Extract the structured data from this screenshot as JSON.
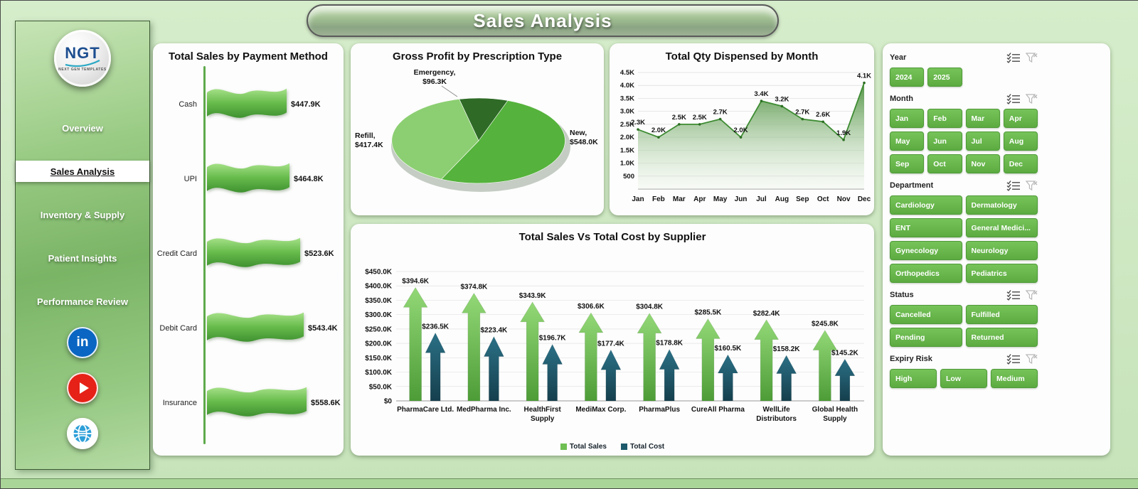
{
  "title": "Sales Analysis",
  "logo": {
    "text": "NGT",
    "subtext": "NEXT GEN TEMPLATES"
  },
  "sidebar": {
    "items": [
      {
        "label": "Overview",
        "active": false
      },
      {
        "label": "Sales Analysis",
        "active": true
      },
      {
        "label": "Inventory & Supply",
        "active": false
      },
      {
        "label": "Patient Insights",
        "active": false
      },
      {
        "label": "Performance Review",
        "active": false
      }
    ],
    "social": [
      {
        "name": "linkedin",
        "glyph": "in"
      },
      {
        "name": "youtube",
        "glyph": ""
      },
      {
        "name": "website",
        "glyph": ""
      }
    ]
  },
  "filters": {
    "sections": [
      {
        "label": "Year",
        "cols": 4,
        "options": [
          "2024",
          "2025"
        ]
      },
      {
        "label": "Month",
        "cols": 4,
        "options": [
          "Jan",
          "Feb",
          "Mar",
          "Apr",
          "May",
          "Jun",
          "Jul",
          "Aug",
          "Sep",
          "Oct",
          "Nov",
          "Dec"
        ]
      },
      {
        "label": "Department",
        "cols": 2,
        "options": [
          "Cardiology",
          "Dermatology",
          "ENT",
          "General Medici...",
          "Gynecology",
          "Neurology",
          "Orthopedics",
          "Pediatrics"
        ]
      },
      {
        "label": "Status",
        "cols": 2,
        "options": [
          "Cancelled",
          "Fulfilled",
          "Pending",
          "Returned"
        ]
      },
      {
        "label": "Expiry Risk",
        "cols": 3,
        "options": [
          "High",
          "Low",
          "Medium"
        ]
      }
    ]
  },
  "chart_data": [
    {
      "id": "payment",
      "type": "bar",
      "title": "Total Sales by Payment Method",
      "categories": [
        "Cash",
        "UPI",
        "Credit Card",
        "Debit Card",
        "Insurance"
      ],
      "values": [
        447.9,
        464.8,
        523.6,
        543.4,
        558.6
      ],
      "labels": [
        "$447.9K",
        "$464.8K",
        "$523.6K",
        "$543.4K",
        "$558.6K"
      ],
      "unit": "thousand USD",
      "bar_color": "#5fb348"
    },
    {
      "id": "prescription",
      "type": "pie",
      "title": "Gross Profit by Prescription Type",
      "slices": [
        {
          "name": "Emergency",
          "value": 96.3,
          "label": "Emergency,",
          "value_label": "$96.3K",
          "color": "#2f6b27"
        },
        {
          "name": "New",
          "value": 548.0,
          "label": "New,",
          "value_label": "$548.0K",
          "color": "#55b23c"
        },
        {
          "name": "Refill",
          "value": 417.4,
          "label": "Refill,",
          "value_label": "$417.4K",
          "color": "#8ccf72"
        }
      ]
    },
    {
      "id": "qty_by_month",
      "type": "area",
      "title": "Total Qty Dispensed by Month",
      "categories": [
        "Jan",
        "Feb",
        "Mar",
        "Apr",
        "May",
        "Jun",
        "Jul",
        "Aug",
        "Sep",
        "Oct",
        "Nov",
        "Dec"
      ],
      "values": [
        2.3,
        2.0,
        2.5,
        2.5,
        2.7,
        2.0,
        3.4,
        3.2,
        2.7,
        2.6,
        1.9,
        4.1
      ],
      "labels": [
        "2.3K",
        "2.0K",
        "2.5K",
        "2.5K",
        "2.7K",
        "2.0K",
        "3.4K",
        "3.2K",
        "2.7K",
        "2.6K",
        "1.9K",
        "4.1K"
      ],
      "yticks": [
        "4.5K",
        "4.0K",
        "3.5K",
        "3.0K",
        "2.5K",
        "2.0K",
        "1.5K",
        "1.0K",
        "500"
      ],
      "ylim": [
        0,
        4.5
      ],
      "line_color": "#3e8c33",
      "grid": true
    },
    {
      "id": "supplier",
      "type": "bar",
      "title": "Total Sales Vs Total Cost by Supplier",
      "categories": [
        "PharmaCare Ltd.",
        "MedPharma Inc.",
        "HealthFirst Supply",
        "MediMax Corp.",
        "PharmaPlus",
        "CureAll Pharma",
        "WellLife Distributors",
        "Global Health Supply"
      ],
      "series": [
        {
          "name": "Total Sales",
          "color": "#6fbf53",
          "values": [
            394.6,
            374.8,
            343.9,
            306.6,
            304.8,
            285.5,
            282.4,
            245.8
          ],
          "labels": [
            "$394.6K",
            "$374.8K",
            "$343.9K",
            "$306.6K",
            "$304.8K",
            "$285.5K",
            "$282.4K",
            "$245.8K"
          ]
        },
        {
          "name": "Total Cost",
          "color": "#1d5a6b",
          "values": [
            236.5,
            223.4,
            196.7,
            177.4,
            178.8,
            160.5,
            158.2,
            145.2
          ],
          "labels": [
            "$236.5K",
            "$223.4K",
            "$196.7K",
            "$177.4K",
            "$178.8K",
            "$160.5K",
            "$158.2K",
            "$145.2K"
          ]
        }
      ],
      "yticks": [
        "$450.0K",
        "$400.0K",
        "$350.0K",
        "$300.0K",
        "$250.0K",
        "$200.0K",
        "$150.0K",
        "$100.0K",
        "$50.0K",
        "$0"
      ],
      "ylim": [
        0,
        450
      ],
      "legend_position": "bottom",
      "grid": true
    }
  ]
}
